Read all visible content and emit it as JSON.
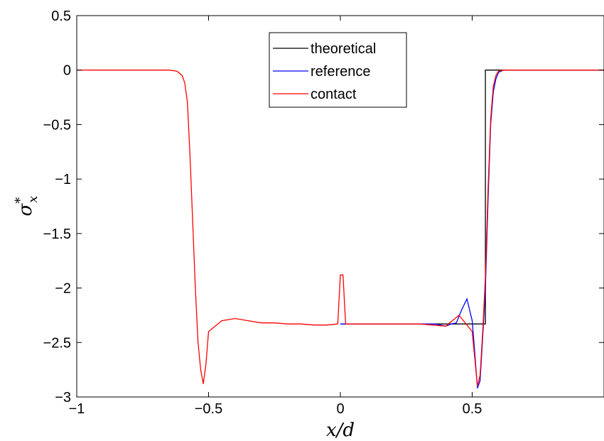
{
  "chart_data": {
    "type": "line",
    "xlabel": "x/d",
    "ylabel_main": "σ",
    "ylabel_sup": "*",
    "ylabel_sub": "x",
    "xlim": [
      -1,
      1
    ],
    "ylim": [
      -3,
      0.5
    ],
    "xticks": [
      -1,
      -0.5,
      0,
      0.5
    ],
    "xtick_labels": [
      "−1",
      "−0.5",
      "0",
      "0.5"
    ],
    "yticks": [
      0.5,
      0,
      -0.5,
      -1,
      -1.5,
      -2,
      -2.5,
      -3
    ],
    "ytick_labels": [
      "0.5",
      "0",
      "−0.5",
      "−1",
      "−1.5",
      "−2",
      "−2.5",
      "−3"
    ],
    "grid": false,
    "legend_position": "top-center",
    "series": [
      {
        "name": "theoretical",
        "color": "#000000",
        "x": [
          0,
          0.55,
          0.55,
          1
        ],
        "y": [
          -2.33,
          -2.33,
          0,
          0
        ]
      },
      {
        "name": "reference",
        "color": "#0000ff",
        "x": [
          0,
          0.05,
          0.1,
          0.15,
          0.2,
          0.25,
          0.3,
          0.34,
          0.36,
          0.38,
          0.4,
          0.42,
          0.44,
          0.46,
          0.48,
          0.5,
          0.51,
          0.52,
          0.53,
          0.54,
          0.55,
          0.56,
          0.57,
          0.58,
          0.59,
          0.6,
          0.62,
          0.65,
          0.7,
          0.8,
          1
        ],
        "y": [
          -2.33,
          -2.33,
          -2.33,
          -2.33,
          -2.33,
          -2.33,
          -2.33,
          -2.33,
          -2.33,
          -2.34,
          -2.35,
          -2.33,
          -2.32,
          -2.2,
          -2.1,
          -2.3,
          -2.6,
          -2.92,
          -2.85,
          -2.45,
          -2.0,
          -1.2,
          -0.5,
          -0.2,
          -0.08,
          -0.02,
          0,
          0,
          0,
          0,
          0
        ]
      },
      {
        "name": "contact",
        "color": "#ff0000",
        "x": [
          -1,
          -0.9,
          -0.8,
          -0.7,
          -0.65,
          -0.62,
          -0.6,
          -0.59,
          -0.58,
          -0.57,
          -0.56,
          -0.55,
          -0.54,
          -0.53,
          -0.52,
          -0.51,
          -0.5,
          -0.45,
          -0.4,
          -0.35,
          -0.3,
          -0.25,
          -0.2,
          -0.15,
          -0.1,
          -0.05,
          -0.01,
          0,
          0.01,
          0.02,
          0.03,
          0.05,
          0.1,
          0.15,
          0.2,
          0.25,
          0.3,
          0.35,
          0.4,
          0.45,
          0.5,
          0.51,
          0.52,
          0.53,
          0.54,
          0.55,
          0.56,
          0.57,
          0.58,
          0.59,
          0.6,
          0.62,
          0.65,
          0.7,
          0.8,
          0.9,
          1
        ],
        "y": [
          0,
          0,
          0,
          0,
          0,
          -0.01,
          -0.05,
          -0.12,
          -0.3,
          -0.8,
          -1.4,
          -2.0,
          -2.5,
          -2.75,
          -2.88,
          -2.7,
          -2.4,
          -2.3,
          -2.28,
          -2.3,
          -2.32,
          -2.32,
          -2.33,
          -2.33,
          -2.34,
          -2.34,
          -2.33,
          -1.88,
          -1.88,
          -2.33,
          -2.33,
          -2.33,
          -2.33,
          -2.33,
          -2.33,
          -2.33,
          -2.33,
          -2.34,
          -2.35,
          -2.25,
          -2.4,
          -2.65,
          -2.9,
          -2.8,
          -2.4,
          -1.9,
          -1.1,
          -0.45,
          -0.15,
          -0.05,
          -0.01,
          0,
          0,
          0,
          0,
          0,
          0
        ]
      }
    ]
  }
}
